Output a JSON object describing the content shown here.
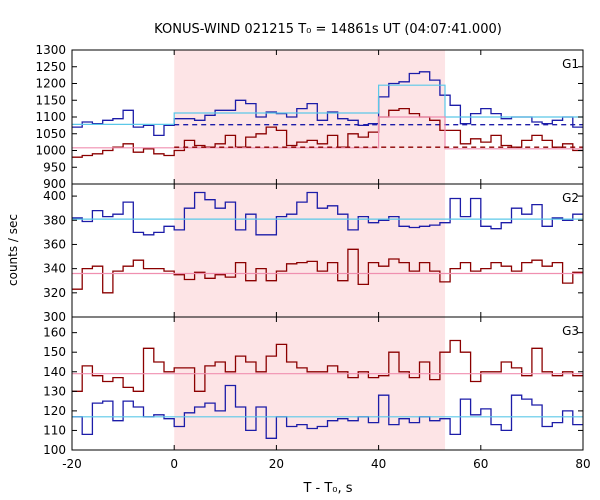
{
  "title": "KONUS-WIND 021215 T₀ = 14861s UT (04:07:41.000)",
  "xlabel": "T - T₀, s",
  "ylabel": "counts / sec",
  "colors": {
    "blue": "#1c1ca8",
    "dark_red": "#8b0000",
    "light_blue": "#5bc8e8",
    "pink": "#f08fb0",
    "shade": "#fde4e6"
  },
  "chart_data": [
    {
      "type": "line",
      "panel_label": "G1",
      "xlim": [
        -20,
        80
      ],
      "ylim": [
        900,
        1300
      ],
      "xticks": [
        -20,
        0,
        20,
        40,
        60,
        80
      ],
      "yticks": [
        900,
        950,
        1000,
        1050,
        1100,
        1150,
        1200,
        1250,
        1300
      ],
      "shaded_x": [
        0,
        53
      ],
      "series": [
        {
          "style": "step",
          "color": "blue",
          "x": [
            -20,
            -18,
            -16,
            -14,
            -12,
            -10,
            -8,
            -6,
            -4,
            -2,
            0,
            2,
            4,
            6,
            8,
            10,
            12,
            14,
            16,
            18,
            20,
            22,
            24,
            26,
            28,
            30,
            32,
            34,
            36,
            38,
            40,
            42,
            44,
            46,
            48,
            50,
            52,
            54,
            56,
            58,
            60,
            62,
            64,
            66,
            68,
            70,
            72,
            74,
            76,
            78,
            80
          ],
          "y": [
            1070,
            1085,
            1080,
            1090,
            1095,
            1120,
            1070,
            1075,
            1045,
            1075,
            1095,
            1095,
            1090,
            1105,
            1120,
            1120,
            1150,
            1140,
            1100,
            1115,
            1110,
            1100,
            1125,
            1140,
            1090,
            1115,
            1095,
            1090,
            1075,
            1080,
            1160,
            1200,
            1205,
            1230,
            1235,
            1210,
            1165,
            1135,
            1080,
            1110,
            1125,
            1110,
            1095,
            1100,
            1100,
            1085,
            1080,
            1090,
            1100,
            1070,
            1070
          ]
        },
        {
          "style": "step",
          "color": "light_blue",
          "x": [
            -20,
            0,
            0,
            40,
            40,
            53,
            53,
            80
          ],
          "y": [
            1078,
            1078,
            1112,
            1112,
            1195,
            1195,
            1100,
            1100
          ]
        },
        {
          "style": "dashed",
          "color": "blue",
          "x": [
            0,
            80
          ],
          "y": [
            1077,
            1077
          ]
        },
        {
          "style": "step",
          "color": "dark_red",
          "x": [
            -20,
            -18,
            -16,
            -14,
            -12,
            -10,
            -8,
            -6,
            -4,
            -2,
            0,
            2,
            4,
            6,
            8,
            10,
            12,
            14,
            16,
            18,
            20,
            22,
            24,
            26,
            28,
            30,
            32,
            34,
            36,
            38,
            40,
            42,
            44,
            46,
            48,
            50,
            52,
            54,
            56,
            58,
            60,
            62,
            64,
            66,
            68,
            70,
            72,
            74,
            76,
            78,
            80
          ],
          "y": [
            980,
            985,
            990,
            1000,
            1010,
            1020,
            995,
            1005,
            990,
            985,
            1000,
            1030,
            1015,
            1010,
            1020,
            1045,
            1010,
            1040,
            1050,
            1070,
            1060,
            1015,
            1025,
            1030,
            1020,
            1045,
            1010,
            1050,
            1040,
            1055,
            1100,
            1120,
            1125,
            1110,
            1100,
            1090,
            1060,
            1060,
            1020,
            1035,
            1025,
            1045,
            1015,
            1010,
            1030,
            1045,
            1030,
            1010,
            1020,
            1000,
            1000
          ]
        },
        {
          "style": "step",
          "color": "pink",
          "x": [
            -20,
            40,
            40,
            53,
            53,
            80
          ],
          "y": [
            1008,
            1008,
            1100,
            1100,
            1005,
            1005
          ]
        },
        {
          "style": "dashed",
          "color": "dark_red",
          "x": [
            0,
            80
          ],
          "y": [
            1010,
            1010
          ]
        }
      ]
    },
    {
      "type": "line",
      "panel_label": "G2",
      "xlim": [
        -20,
        80
      ],
      "ylim": [
        300,
        410
      ],
      "yticks": [
        300,
        320,
        340,
        360,
        380,
        400
      ],
      "shaded_x": [
        0,
        53
      ],
      "series": [
        {
          "style": "step",
          "color": "blue",
          "x": [
            -20,
            -18,
            -16,
            -14,
            -12,
            -10,
            -8,
            -6,
            -4,
            -2,
            0,
            2,
            4,
            6,
            8,
            10,
            12,
            14,
            16,
            18,
            20,
            22,
            24,
            26,
            28,
            30,
            32,
            34,
            36,
            38,
            40,
            42,
            44,
            46,
            48,
            50,
            52,
            54,
            56,
            58,
            60,
            62,
            64,
            66,
            68,
            70,
            72,
            74,
            76,
            78,
            80
          ],
          "y": [
            382,
            379,
            388,
            383,
            385,
            395,
            370,
            368,
            370,
            375,
            372,
            390,
            403,
            397,
            390,
            395,
            372,
            385,
            368,
            368,
            383,
            385,
            395,
            403,
            390,
            392,
            385,
            372,
            383,
            378,
            380,
            383,
            375,
            374,
            375,
            376,
            378,
            398,
            383,
            398,
            375,
            373,
            378,
            390,
            385,
            393,
            375,
            382,
            380,
            385,
            385
          ]
        },
        {
          "style": "step",
          "color": "light_blue",
          "x": [
            -20,
            80
          ],
          "y": [
            381,
            381
          ]
        },
        {
          "style": "step",
          "color": "dark_red",
          "x": [
            -20,
            -18,
            -16,
            -14,
            -12,
            -10,
            -8,
            -6,
            -4,
            -2,
            0,
            2,
            4,
            6,
            8,
            10,
            12,
            14,
            16,
            18,
            20,
            22,
            24,
            26,
            28,
            30,
            32,
            34,
            36,
            38,
            40,
            42,
            44,
            46,
            48,
            50,
            52,
            54,
            56,
            58,
            60,
            62,
            64,
            66,
            68,
            70,
            72,
            74,
            76,
            78,
            80
          ],
          "y": [
            323,
            340,
            342,
            320,
            338,
            342,
            347,
            340,
            340,
            338,
            335,
            331,
            337,
            332,
            335,
            333,
            345,
            330,
            340,
            330,
            338,
            344,
            345,
            346,
            338,
            345,
            330,
            356,
            327,
            345,
            342,
            348,
            345,
            338,
            345,
            338,
            329,
            340,
            345,
            338,
            340,
            345,
            342,
            338,
            345,
            347,
            342,
            345,
            328,
            337,
            337
          ]
        },
        {
          "style": "step",
          "color": "pink",
          "x": [
            -20,
            80
          ],
          "y": [
            336,
            336
          ]
        }
      ]
    },
    {
      "type": "line",
      "panel_label": "G3",
      "xlim": [
        -20,
        80
      ],
      "ylim": [
        100,
        168
      ],
      "xticks": [
        -20,
        0,
        20,
        40,
        60,
        80
      ],
      "yticks": [
        100,
        110,
        120,
        130,
        140,
        150,
        160
      ],
      "shaded_x": [
        0,
        53
      ],
      "series": [
        {
          "style": "step",
          "color": "blue",
          "x": [
            -20,
            -18,
            -16,
            -14,
            -12,
            -10,
            -8,
            -6,
            -4,
            -2,
            0,
            2,
            4,
            6,
            8,
            10,
            12,
            14,
            16,
            18,
            20,
            22,
            24,
            26,
            28,
            30,
            32,
            34,
            36,
            38,
            40,
            42,
            44,
            46,
            48,
            50,
            52,
            54,
            56,
            58,
            60,
            62,
            64,
            66,
            68,
            70,
            72,
            74,
            76,
            78,
            80
          ],
          "y": [
            117,
            108,
            124,
            125,
            115,
            125,
            122,
            117,
            118,
            116,
            112,
            119,
            122,
            124,
            120,
            133,
            122,
            110,
            122,
            106,
            117,
            112,
            113,
            111,
            112,
            115,
            116,
            115,
            117,
            114,
            128,
            113,
            116,
            114,
            117,
            115,
            116,
            108,
            126,
            118,
            121,
            113,
            110,
            128,
            126,
            123,
            112,
            114,
            120,
            113,
            113
          ]
        },
        {
          "style": "step",
          "color": "light_blue",
          "x": [
            -20,
            80
          ],
          "y": [
            117,
            117
          ]
        },
        {
          "style": "step",
          "color": "dark_red",
          "x": [
            -20,
            -18,
            -16,
            -14,
            -12,
            -10,
            -8,
            -6,
            -4,
            -2,
            0,
            2,
            4,
            6,
            8,
            10,
            12,
            14,
            16,
            18,
            20,
            22,
            24,
            26,
            28,
            30,
            32,
            34,
            36,
            38,
            40,
            42,
            44,
            46,
            48,
            50,
            52,
            54,
            56,
            58,
            60,
            62,
            64,
            66,
            68,
            70,
            72,
            74,
            76,
            78,
            80
          ],
          "y": [
            130,
            143,
            138,
            135,
            137,
            132,
            130,
            152,
            145,
            140,
            142,
            142,
            130,
            143,
            145,
            140,
            148,
            145,
            140,
            148,
            154,
            145,
            142,
            140,
            140,
            143,
            140,
            137,
            140,
            137,
            138,
            150,
            140,
            137,
            145,
            136,
            150,
            156,
            150,
            135,
            140,
            140,
            145,
            142,
            138,
            152,
            140,
            138,
            140,
            138,
            138
          ]
        },
        {
          "style": "step",
          "color": "pink",
          "x": [
            -20,
            80
          ],
          "y": [
            139,
            139
          ]
        }
      ]
    }
  ]
}
